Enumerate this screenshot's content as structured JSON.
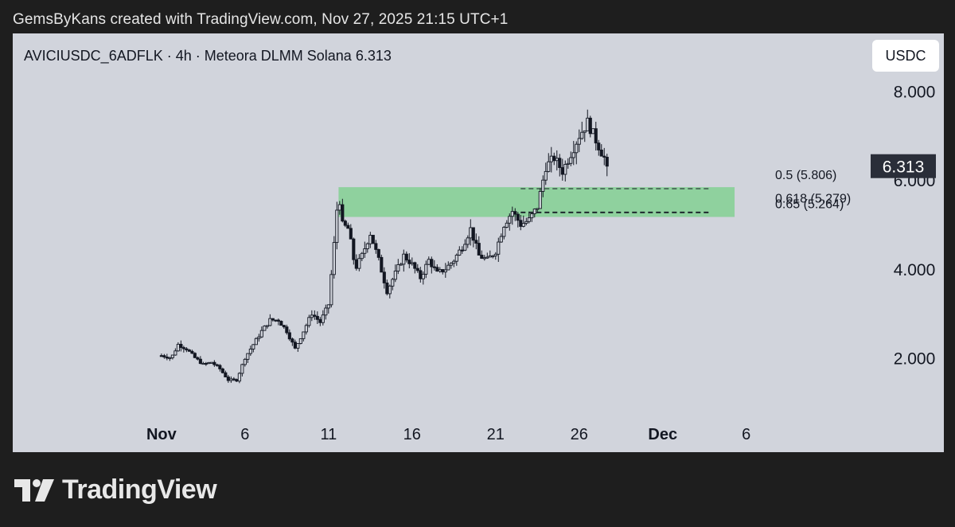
{
  "header": {
    "text": "GemsByKans created with TradingView.com, Nov 27, 2025 21:15 UTC+1"
  },
  "chart_data": {
    "type": "candlestick",
    "title": "AVICIUSDC_6ADFLK · 4h · Meteora DLMM Solana  6.313",
    "symbol": "AVICIUSDC_6ADFLK",
    "interval": "4h",
    "exchange": "Meteora DLMM Solana",
    "last_price": "6.313",
    "currency": "USDC",
    "y_ticks": [
      "2.000",
      "4.000",
      "6.000",
      "8.000"
    ],
    "y_tick_values": [
      2,
      4,
      6,
      8
    ],
    "ylim": [
      0.7,
      9.3
    ],
    "x_ticks": [
      "Nov",
      "6",
      "11",
      "16",
      "21",
      "26",
      "Dec",
      "6"
    ],
    "x_tick_days": [
      1,
      6,
      11,
      16,
      21,
      26,
      31,
      36
    ],
    "x_bold": [
      true,
      false,
      false,
      false,
      false,
      false,
      true,
      false
    ],
    "xlim_days": [
      -7.9,
      43.3
    ],
    "price_path": [
      [
        1.0,
        2.05
      ],
      [
        1.6,
        2.0
      ],
      [
        2.0,
        2.3
      ],
      [
        2.5,
        2.2
      ],
      [
        3.0,
        2.0
      ],
      [
        3.5,
        1.85
      ],
      [
        4.0,
        1.9
      ],
      [
        4.5,
        1.75
      ],
      [
        5.0,
        1.5
      ],
      [
        5.5,
        1.5
      ],
      [
        6.0,
        2.0
      ],
      [
        6.5,
        2.3
      ],
      [
        7.0,
        2.6
      ],
      [
        7.5,
        2.85
      ],
      [
        8.0,
        2.85
      ],
      [
        8.5,
        2.6
      ],
      [
        9.0,
        2.2
      ],
      [
        9.5,
        2.6
      ],
      [
        10.0,
        3.0
      ],
      [
        10.5,
        2.8
      ],
      [
        11.0,
        3.2
      ],
      [
        11.3,
        4.4
      ],
      [
        11.6,
        5.8
      ],
      [
        11.8,
        5.0
      ],
      [
        12.2,
        4.9
      ],
      [
        12.6,
        4.0
      ],
      [
        13.0,
        4.3
      ],
      [
        13.5,
        4.8
      ],
      [
        14.0,
        4.2
      ],
      [
        14.5,
        3.5
      ],
      [
        15.0,
        3.9
      ],
      [
        15.5,
        4.3
      ],
      [
        16.0,
        4.1
      ],
      [
        16.5,
        3.8
      ],
      [
        17.0,
        4.2
      ],
      [
        17.5,
        3.9
      ],
      [
        18.0,
        4.0
      ],
      [
        18.5,
        4.2
      ],
      [
        19.0,
        4.5
      ],
      [
        19.5,
        4.9
      ],
      [
        20.0,
        4.3
      ],
      [
        20.5,
        4.2
      ],
      [
        21.0,
        4.4
      ],
      [
        21.5,
        5.0
      ],
      [
        22.0,
        5.3
      ],
      [
        22.5,
        5.0
      ],
      [
        23.0,
        5.1
      ],
      [
        23.5,
        5.4
      ],
      [
        24.0,
        6.3
      ],
      [
        24.5,
        6.5
      ],
      [
        25.0,
        6.2
      ],
      [
        25.5,
        6.6
      ],
      [
        26.0,
        7.0
      ],
      [
        26.5,
        7.3
      ],
      [
        27.0,
        6.9
      ],
      [
        27.5,
        6.5
      ],
      [
        27.8,
        6.313
      ]
    ],
    "fib_zone": {
      "x_start_day": 11.6,
      "x_end_day": 35.3,
      "y_top": 5.84,
      "y_bottom": 5.17,
      "color": "#8fd19e"
    },
    "fib_levels": [
      {
        "label": "0.5 (5.806)",
        "value": 5.806
      },
      {
        "label": "0.618 (5.279)",
        "value": 5.279
      },
      {
        "label": "0.65 (5.264)",
        "value": 5.264
      }
    ],
    "fib_line_start_day": 22.5,
    "price_label_bg": "#2a2e39",
    "panel_bg": "#d1d4dc",
    "candle_color": "#131722",
    "grid": false
  },
  "footer": {
    "brand": "TradingView"
  }
}
